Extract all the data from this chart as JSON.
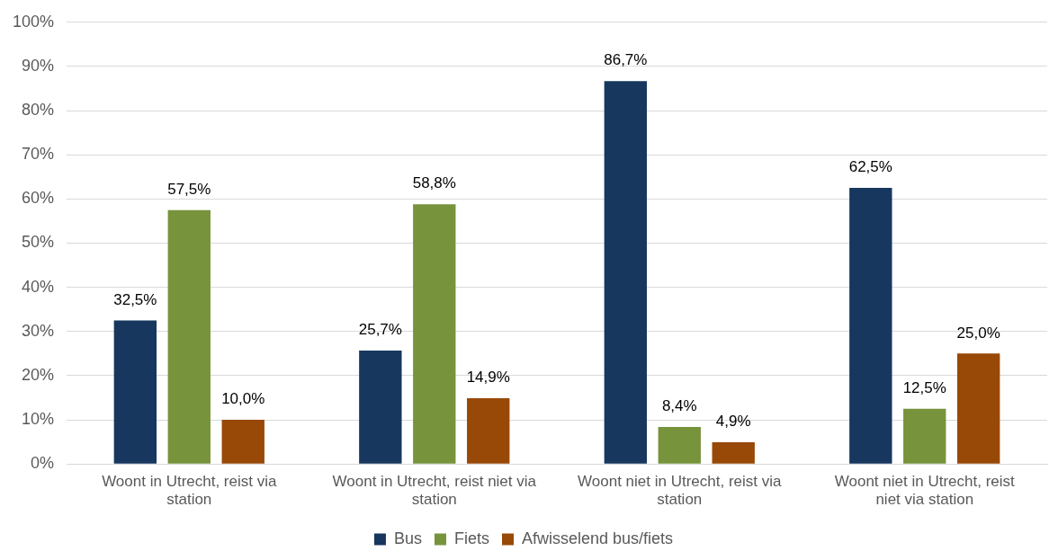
{
  "chart_data": {
    "type": "bar",
    "categories": [
      "Woont in Utrecht, reist via station",
      "Woont in Utrecht, reist niet via station",
      "Woont niet in Utrecht, reist via station",
      "Woont niet in Utrecht, reist niet via station"
    ],
    "series": [
      {
        "name": "Bus",
        "color": "#17375e",
        "values": [
          32.5,
          25.7,
          86.7,
          62.5
        ],
        "value_labels": [
          "32,5%",
          "25,7%",
          "86,7%",
          "62,5%"
        ]
      },
      {
        "name": "Fiets",
        "color": "#77933c",
        "values": [
          57.5,
          58.8,
          8.4,
          12.5
        ],
        "value_labels": [
          "57,5%",
          "58,8%",
          "8,4%",
          "12,5%"
        ]
      },
      {
        "name": "Afwisselend bus/fiets",
        "color": "#984807",
        "values": [
          10.0,
          14.9,
          4.9,
          25.0
        ],
        "value_labels": [
          "10,0%",
          "14,9%",
          "4,9%",
          "25,0%"
        ]
      }
    ],
    "ylim": [
      0,
      100
    ],
    "yticks": [
      {
        "value": 0,
        "label": "0%"
      },
      {
        "value": 10,
        "label": "10%"
      },
      {
        "value": 20,
        "label": "20%"
      },
      {
        "value": 30,
        "label": "30%"
      },
      {
        "value": 40,
        "label": "40%"
      },
      {
        "value": 50,
        "label": "50%"
      },
      {
        "value": 60,
        "label": "60%"
      },
      {
        "value": 70,
        "label": "70%"
      },
      {
        "value": 80,
        "label": "80%"
      },
      {
        "value": 90,
        "label": "90%"
      },
      {
        "value": 100,
        "label": "100%"
      }
    ],
    "grid": "y",
    "legend": "bottom"
  }
}
